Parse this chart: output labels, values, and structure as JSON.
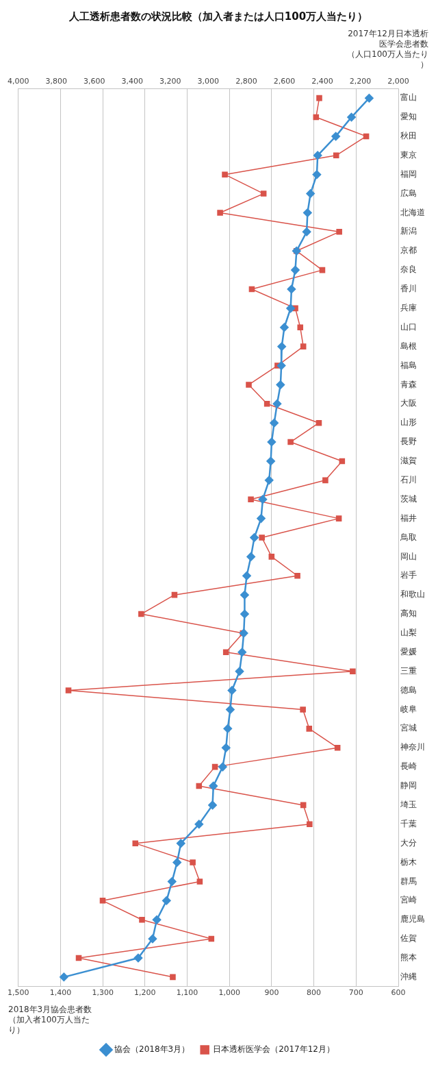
{
  "chart_data": {
    "type": "line",
    "orientation": "horizontal",
    "title": "人工透析患者数の状況比較（加入者または人口100万人当たり）",
    "xlabel": "2018年3月協会患者数（加入者100万人当たり）",
    "x2label": "2017年12月日本透析医学会患者数（人口100万人当たり）",
    "categories": [
      "富山",
      "愛知",
      "秋田",
      "東京",
      "福岡",
      "広島",
      "北海道",
      "新潟",
      "京都",
      "奈良",
      "香川",
      "兵庫",
      "山口",
      "島根",
      "福島",
      "青森",
      "大阪",
      "山形",
      "長野",
      "滋賀",
      "石川",
      "茨城",
      "福井",
      "鳥取",
      "岡山",
      "岩手",
      "和歌山",
      "高知",
      "山梨",
      "愛媛",
      "三重",
      "徳島",
      "岐阜",
      "宮城",
      "神奈川",
      "長崎",
      "静岡",
      "埼玉",
      "千葉",
      "大分",
      "栃木",
      "群馬",
      "宮崎",
      "鹿児島",
      "佐賀",
      "熊本",
      "沖縄"
    ],
    "series": [
      {
        "name": "協会（2018年3月）",
        "color": "#3b8fd1",
        "marker": "diamond",
        "values": [
          669,
          711,
          748,
          791,
          793,
          808,
          815,
          817,
          841,
          844,
          853,
          855,
          870,
          876,
          877,
          879,
          887,
          894,
          900,
          902,
          906,
          921,
          925,
          941,
          949,
          959,
          964,
          964,
          966,
          970,
          976,
          994,
          998,
          1004,
          1008,
          1016,
          1038,
          1040,
          1072,
          1115,
          1124,
          1136,
          1149,
          1172,
          1182,
          1216,
          1392
        ]
      },
      {
        "name": "日本透析医学会（2017年12月）",
        "color": "#d9534a",
        "marker": "square",
        "axis": "x2",
        "values": [
          2416,
          2433,
          2169,
          2327,
          2913,
          2709,
          2938,
          2311,
          2536,
          2400,
          2771,
          2542,
          2516,
          2500,
          2636,
          2787,
          2691,
          2418,
          2567,
          2296,
          2384,
          2776,
          2313,
          2718,
          2667,
          2531,
          3178,
          3353,
          2818,
          2907,
          2240,
          3736,
          2502,
          2469,
          2320,
          2965,
          3049,
          2500,
          2467,
          3384,
          3082,
          3045,
          3556,
          3349,
          2984,
          3682,
          3187
        ]
      }
    ],
    "xlim": [
      1500,
      600
    ],
    "xticks": [
      {
        "value": 1500,
        "label": "1,500"
      },
      {
        "value": 1400,
        "label": "1,400"
      },
      {
        "value": 1300,
        "label": "1,300"
      },
      {
        "value": 1200,
        "label": "1,200"
      },
      {
        "value": 1100,
        "label": "1,100"
      },
      {
        "value": 1000,
        "label": "1,000"
      },
      900,
      800,
      700,
      600
    ],
    "x2lim": [
      4000,
      2000
    ],
    "x2ticks": [
      {
        "value": 4000,
        "label": "4,000"
      },
      {
        "value": 3800,
        "label": "3,800"
      },
      {
        "value": 3600,
        "label": "3,600"
      },
      {
        "value": 3400,
        "label": "3,400"
      },
      {
        "value": 3200,
        "label": "3,200"
      },
      {
        "value": 3000,
        "label": "3,000"
      },
      {
        "value": 2800,
        "label": "2,800"
      },
      {
        "value": 2600,
        "label": "2,600"
      },
      {
        "value": 2400,
        "label": "2,400"
      },
      {
        "value": 2200,
        "label": "2,200"
      },
      {
        "value": 2000,
        "label": "2,000"
      }
    ],
    "grid": "x",
    "legend": "bottom",
    "line_style": "solid"
  }
}
